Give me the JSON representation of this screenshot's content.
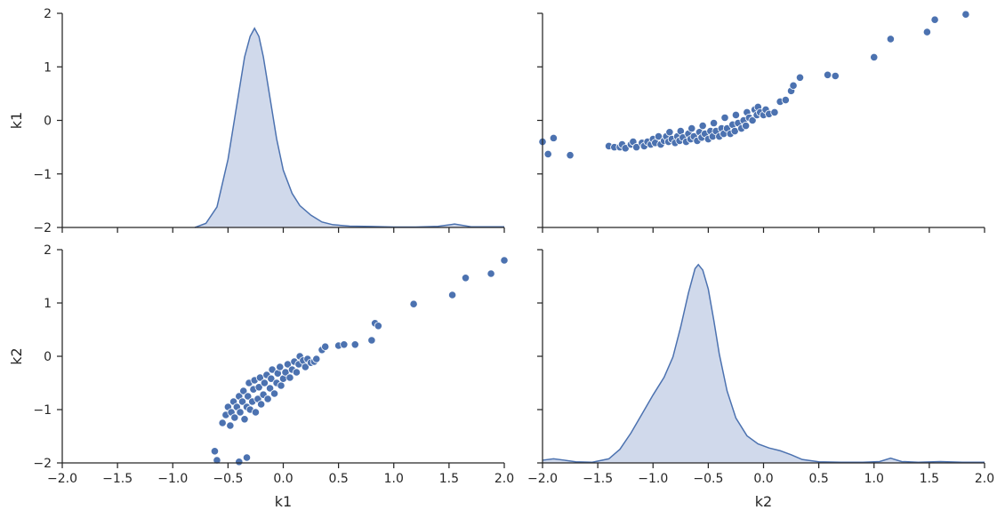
{
  "chart_data": {
    "type": "pairplot",
    "variables": [
      "k1",
      "k2"
    ],
    "color": "#4c72b0",
    "fill_color": "#d0d9eb",
    "axis_range": [
      -2,
      2
    ],
    "ticks": [
      -2,
      -1,
      0,
      1,
      2
    ],
    "ticks_x": [
      -2.0,
      -1.5,
      -1.0,
      -0.5,
      0.0,
      0.5,
      1.0,
      1.5,
      2.0
    ],
    "tick_labels_y": [
      "−2",
      "−1",
      "0",
      "1",
      "2"
    ],
    "tick_labels_x": [
      "−2.0",
      "−1.5",
      "−1.0",
      "−0.5",
      "0.0",
      "0.5",
      "1.0",
      "1.5",
      "2.0"
    ],
    "xlabels": [
      "k1",
      "k2"
    ],
    "ylabels": [
      "k1",
      "k2"
    ],
    "panels": [
      {
        "row": 0,
        "col": 0,
        "type": "kde",
        "variable": "k1",
        "density_peak_label": "",
        "curve": [
          [
            -0.8,
            0.0
          ],
          [
            -0.7,
            0.3
          ],
          [
            -0.6,
            1.5
          ],
          [
            -0.5,
            5.0
          ],
          [
            -0.42,
            9.0
          ],
          [
            -0.35,
            12.5
          ],
          [
            -0.3,
            14.0
          ],
          [
            -0.26,
            14.6
          ],
          [
            -0.22,
            14.0
          ],
          [
            -0.18,
            12.5
          ],
          [
            -0.12,
            9.5
          ],
          [
            -0.06,
            6.5
          ],
          [
            0.0,
            4.2
          ],
          [
            0.08,
            2.5
          ],
          [
            0.15,
            1.6
          ],
          [
            0.25,
            0.9
          ],
          [
            0.35,
            0.4
          ],
          [
            0.45,
            0.2
          ],
          [
            0.6,
            0.1
          ],
          [
            0.8,
            0.07
          ],
          [
            1.0,
            0.03
          ],
          [
            1.2,
            0.03
          ],
          [
            1.4,
            0.08
          ],
          [
            1.55,
            0.25
          ],
          [
            1.7,
            0.05
          ],
          [
            1.85,
            0.05
          ],
          [
            2.0,
            0.05
          ]
        ]
      },
      {
        "row": 0,
        "col": 1,
        "type": "scatter",
        "x_variable": "k2",
        "y_variable": "k1",
        "points": [
          [
            -2.0,
            -0.4
          ],
          [
            -1.95,
            -0.63
          ],
          [
            -1.9,
            -0.33
          ],
          [
            -1.75,
            -0.65
          ],
          [
            -1.4,
            -0.48
          ],
          [
            -1.35,
            -0.5
          ],
          [
            -1.3,
            -0.5
          ],
          [
            -1.28,
            -0.45
          ],
          [
            -1.25,
            -0.52
          ],
          [
            -1.2,
            -0.45
          ],
          [
            -1.18,
            -0.4
          ],
          [
            -1.15,
            -0.5
          ],
          [
            -1.1,
            -0.42
          ],
          [
            -1.08,
            -0.48
          ],
          [
            -1.05,
            -0.4
          ],
          [
            -1.02,
            -0.45
          ],
          [
            -1.0,
            -0.35
          ],
          [
            -0.98,
            -0.42
          ],
          [
            -0.95,
            -0.3
          ],
          [
            -0.93,
            -0.45
          ],
          [
            -0.9,
            -0.38
          ],
          [
            -0.88,
            -0.3
          ],
          [
            -0.86,
            -0.4
          ],
          [
            -0.85,
            -0.22
          ],
          [
            -0.83,
            -0.35
          ],
          [
            -0.8,
            -0.42
          ],
          [
            -0.78,
            -0.3
          ],
          [
            -0.76,
            -0.38
          ],
          [
            -0.75,
            -0.2
          ],
          [
            -0.73,
            -0.32
          ],
          [
            -0.7,
            -0.4
          ],
          [
            -0.68,
            -0.25
          ],
          [
            -0.66,
            -0.35
          ],
          [
            -0.65,
            -0.15
          ],
          [
            -0.63,
            -0.3
          ],
          [
            -0.6,
            -0.38
          ],
          [
            -0.58,
            -0.22
          ],
          [
            -0.56,
            -0.32
          ],
          [
            -0.55,
            -0.1
          ],
          [
            -0.53,
            -0.25
          ],
          [
            -0.5,
            -0.35
          ],
          [
            -0.48,
            -0.2
          ],
          [
            -0.46,
            -0.3
          ],
          [
            -0.45,
            -0.05
          ],
          [
            -0.43,
            -0.2
          ],
          [
            -0.4,
            -0.3
          ],
          [
            -0.38,
            -0.15
          ],
          [
            -0.36,
            -0.25
          ],
          [
            -0.35,
            0.05
          ],
          [
            -0.33,
            -0.15
          ],
          [
            -0.3,
            -0.25
          ],
          [
            -0.28,
            -0.08
          ],
          [
            -0.26,
            -0.2
          ],
          [
            -0.25,
            0.1
          ],
          [
            -0.23,
            -0.05
          ],
          [
            -0.2,
            -0.15
          ],
          [
            -0.18,
            0.0
          ],
          [
            -0.16,
            -0.1
          ],
          [
            -0.15,
            0.15
          ],
          [
            -0.13,
            0.05
          ],
          [
            -0.1,
            0.0
          ],
          [
            -0.08,
            0.2
          ],
          [
            -0.06,
            0.1
          ],
          [
            -0.05,
            0.25
          ],
          [
            -0.03,
            0.15
          ],
          [
            0.0,
            0.1
          ],
          [
            0.02,
            0.2
          ],
          [
            0.05,
            0.12
          ],
          [
            0.1,
            0.15
          ],
          [
            0.15,
            0.35
          ],
          [
            0.2,
            0.38
          ],
          [
            0.25,
            0.55
          ],
          [
            0.27,
            0.65
          ],
          [
            0.33,
            0.8
          ],
          [
            0.58,
            0.85
          ],
          [
            0.65,
            0.83
          ],
          [
            1.0,
            1.18
          ],
          [
            1.15,
            1.52
          ],
          [
            1.48,
            1.65
          ],
          [
            1.55,
            1.88
          ],
          [
            1.83,
            1.98
          ]
        ]
      },
      {
        "row": 1,
        "col": 0,
        "type": "scatter",
        "x_variable": "k1",
        "y_variable": "k2",
        "points": [
          [
            -0.62,
            -1.78
          ],
          [
            -0.6,
            -1.95
          ],
          [
            -0.4,
            -1.98
          ],
          [
            -0.33,
            -1.9
          ],
          [
            -0.55,
            -1.25
          ],
          [
            -0.52,
            -1.1
          ],
          [
            -0.5,
            -0.95
          ],
          [
            -0.48,
            -1.3
          ],
          [
            -0.47,
            -1.05
          ],
          [
            -0.45,
            -0.85
          ],
          [
            -0.44,
            -1.15
          ],
          [
            -0.42,
            -0.95
          ],
          [
            -0.4,
            -0.75
          ],
          [
            -0.39,
            -1.05
          ],
          [
            -0.37,
            -0.85
          ],
          [
            -0.36,
            -0.65
          ],
          [
            -0.35,
            -1.18
          ],
          [
            -0.33,
            -0.95
          ],
          [
            -0.32,
            -0.75
          ],
          [
            -0.31,
            -0.5
          ],
          [
            -0.3,
            -1.0
          ],
          [
            -0.28,
            -0.85
          ],
          [
            -0.27,
            -0.62
          ],
          [
            -0.26,
            -0.45
          ],
          [
            -0.25,
            -1.05
          ],
          [
            -0.23,
            -0.8
          ],
          [
            -0.22,
            -0.58
          ],
          [
            -0.21,
            -0.4
          ],
          [
            -0.2,
            -0.9
          ],
          [
            -0.18,
            -0.72
          ],
          [
            -0.17,
            -0.5
          ],
          [
            -0.15,
            -0.35
          ],
          [
            -0.14,
            -0.8
          ],
          [
            -0.12,
            -0.6
          ],
          [
            -0.11,
            -0.42
          ],
          [
            -0.1,
            -0.25
          ],
          [
            -0.08,
            -0.7
          ],
          [
            -0.06,
            -0.5
          ],
          [
            -0.05,
            -0.32
          ],
          [
            -0.03,
            -0.2
          ],
          [
            -0.02,
            -0.55
          ],
          [
            0.0,
            -0.42
          ],
          [
            0.02,
            -0.3
          ],
          [
            0.04,
            -0.15
          ],
          [
            0.06,
            -0.4
          ],
          [
            0.08,
            -0.25
          ],
          [
            0.1,
            -0.1
          ],
          [
            0.12,
            -0.3
          ],
          [
            0.14,
            -0.15
          ],
          [
            0.15,
            0.0
          ],
          [
            0.18,
            -0.08
          ],
          [
            0.2,
            -0.2
          ],
          [
            0.22,
            -0.05
          ],
          [
            0.25,
            -0.12
          ],
          [
            0.28,
            -0.1
          ],
          [
            0.3,
            -0.05
          ],
          [
            0.35,
            0.12
          ],
          [
            0.38,
            0.18
          ],
          [
            0.5,
            0.2
          ],
          [
            0.55,
            0.22
          ],
          [
            0.65,
            0.22
          ],
          [
            0.8,
            0.3
          ],
          [
            0.83,
            0.62
          ],
          [
            0.86,
            0.57
          ],
          [
            1.18,
            0.98
          ],
          [
            1.53,
            1.15
          ],
          [
            1.65,
            1.47
          ],
          [
            1.88,
            1.55
          ],
          [
            2.0,
            1.8
          ]
        ]
      },
      {
        "row": 1,
        "col": 1,
        "type": "kde",
        "variable": "k2",
        "curve": [
          [
            -2.0,
            0.2
          ],
          [
            -1.9,
            0.3
          ],
          [
            -1.8,
            0.2
          ],
          [
            -1.7,
            0.08
          ],
          [
            -1.55,
            0.05
          ],
          [
            -1.4,
            0.3
          ],
          [
            -1.3,
            1.0
          ],
          [
            -1.2,
            2.2
          ],
          [
            -1.1,
            3.6
          ],
          [
            -1.0,
            5.0
          ],
          [
            -0.9,
            6.3
          ],
          [
            -0.82,
            7.8
          ],
          [
            -0.75,
            10.0
          ],
          [
            -0.68,
            12.5
          ],
          [
            -0.62,
            14.3
          ],
          [
            -0.59,
            14.6
          ],
          [
            -0.55,
            14.2
          ],
          [
            -0.5,
            12.8
          ],
          [
            -0.45,
            10.5
          ],
          [
            -0.4,
            8.0
          ],
          [
            -0.33,
            5.3
          ],
          [
            -0.25,
            3.3
          ],
          [
            -0.15,
            2.0
          ],
          [
            -0.05,
            1.4
          ],
          [
            0.05,
            1.1
          ],
          [
            0.15,
            0.9
          ],
          [
            0.25,
            0.6
          ],
          [
            0.35,
            0.25
          ],
          [
            0.5,
            0.08
          ],
          [
            0.7,
            0.05
          ],
          [
            0.9,
            0.05
          ],
          [
            1.05,
            0.1
          ],
          [
            1.15,
            0.35
          ],
          [
            1.25,
            0.1
          ],
          [
            1.4,
            0.05
          ],
          [
            1.6,
            0.1
          ],
          [
            1.8,
            0.05
          ],
          [
            2.0,
            0.05
          ]
        ]
      }
    ]
  }
}
